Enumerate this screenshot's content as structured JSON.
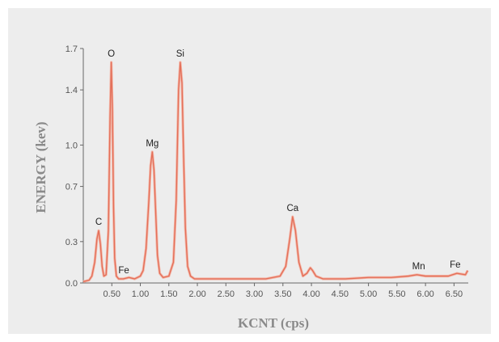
{
  "chart_data": {
    "type": "line",
    "xlabel": "KCNT (cps)",
    "ylabel": "ENERGY (kev)",
    "xlim": [
      0,
      6.75
    ],
    "ylim": [
      0,
      1.7
    ],
    "x_ticks": [
      "0.50",
      "1.00",
      "1.50",
      "2.00",
      "2.50",
      "3.00",
      "3.50",
      "4.00",
      "4.50",
      "5.00",
      "5.50",
      "6.00",
      "6.50"
    ],
    "y_ticks": [
      {
        "value": 0.0,
        "label": "0.0"
      },
      {
        "value": 0.3,
        "label": "0.3"
      },
      {
        "value": 0.7,
        "label": "0.7"
      },
      {
        "value": 1.0,
        "label": "1.0"
      },
      {
        "value": 1.4,
        "label": "1.4"
      },
      {
        "value": 1.7,
        "label": "1.7"
      }
    ],
    "grid": false,
    "series": [
      {
        "color": "#e3705a",
        "x": [
          0.0,
          0.1,
          0.15,
          0.2,
          0.24,
          0.27,
          0.3,
          0.33,
          0.36,
          0.4,
          0.44,
          0.47,
          0.49,
          0.51,
          0.53,
          0.55,
          0.58,
          0.62,
          0.7,
          0.8,
          0.9,
          1.0,
          1.05,
          1.1,
          1.15,
          1.18,
          1.21,
          1.24,
          1.27,
          1.3,
          1.34,
          1.4,
          1.5,
          1.58,
          1.63,
          1.67,
          1.7,
          1.73,
          1.76,
          1.79,
          1.83,
          1.88,
          1.95,
          2.1,
          2.4,
          2.8,
          3.2,
          3.45,
          3.55,
          3.62,
          3.67,
          3.72,
          3.78,
          3.85,
          3.92,
          3.98,
          4.02,
          4.08,
          4.2,
          4.6,
          5.0,
          5.4,
          5.7,
          5.85,
          6.0,
          6.2,
          6.4,
          6.55,
          6.7,
          6.74
        ],
        "y": [
          0.01,
          0.02,
          0.05,
          0.15,
          0.32,
          0.38,
          0.28,
          0.12,
          0.05,
          0.06,
          0.38,
          1.2,
          1.6,
          1.25,
          0.55,
          0.18,
          0.05,
          0.03,
          0.03,
          0.04,
          0.03,
          0.05,
          0.09,
          0.25,
          0.6,
          0.85,
          0.95,
          0.82,
          0.5,
          0.2,
          0.07,
          0.04,
          0.05,
          0.15,
          0.6,
          1.4,
          1.6,
          1.45,
          0.9,
          0.4,
          0.12,
          0.05,
          0.03,
          0.03,
          0.03,
          0.03,
          0.03,
          0.05,
          0.12,
          0.32,
          0.48,
          0.38,
          0.15,
          0.05,
          0.07,
          0.11,
          0.09,
          0.05,
          0.03,
          0.03,
          0.04,
          0.04,
          0.05,
          0.06,
          0.05,
          0.05,
          0.05,
          0.07,
          0.06,
          0.09
        ]
      }
    ],
    "annotations": [
      {
        "text": "C",
        "x": 0.27,
        "y": 0.38
      },
      {
        "text": "O",
        "x": 0.49,
        "y": 1.6
      },
      {
        "text": "Fe",
        "x": 0.71,
        "y": 0.03
      },
      {
        "text": "Mg",
        "x": 1.21,
        "y": 0.95
      },
      {
        "text": "Si",
        "x": 1.7,
        "y": 1.6
      },
      {
        "text": "Ca",
        "x": 3.67,
        "y": 0.48
      },
      {
        "text": "Mn",
        "x": 5.88,
        "y": 0.06
      },
      {
        "text": "Fe",
        "x": 6.52,
        "y": 0.07
      }
    ]
  }
}
